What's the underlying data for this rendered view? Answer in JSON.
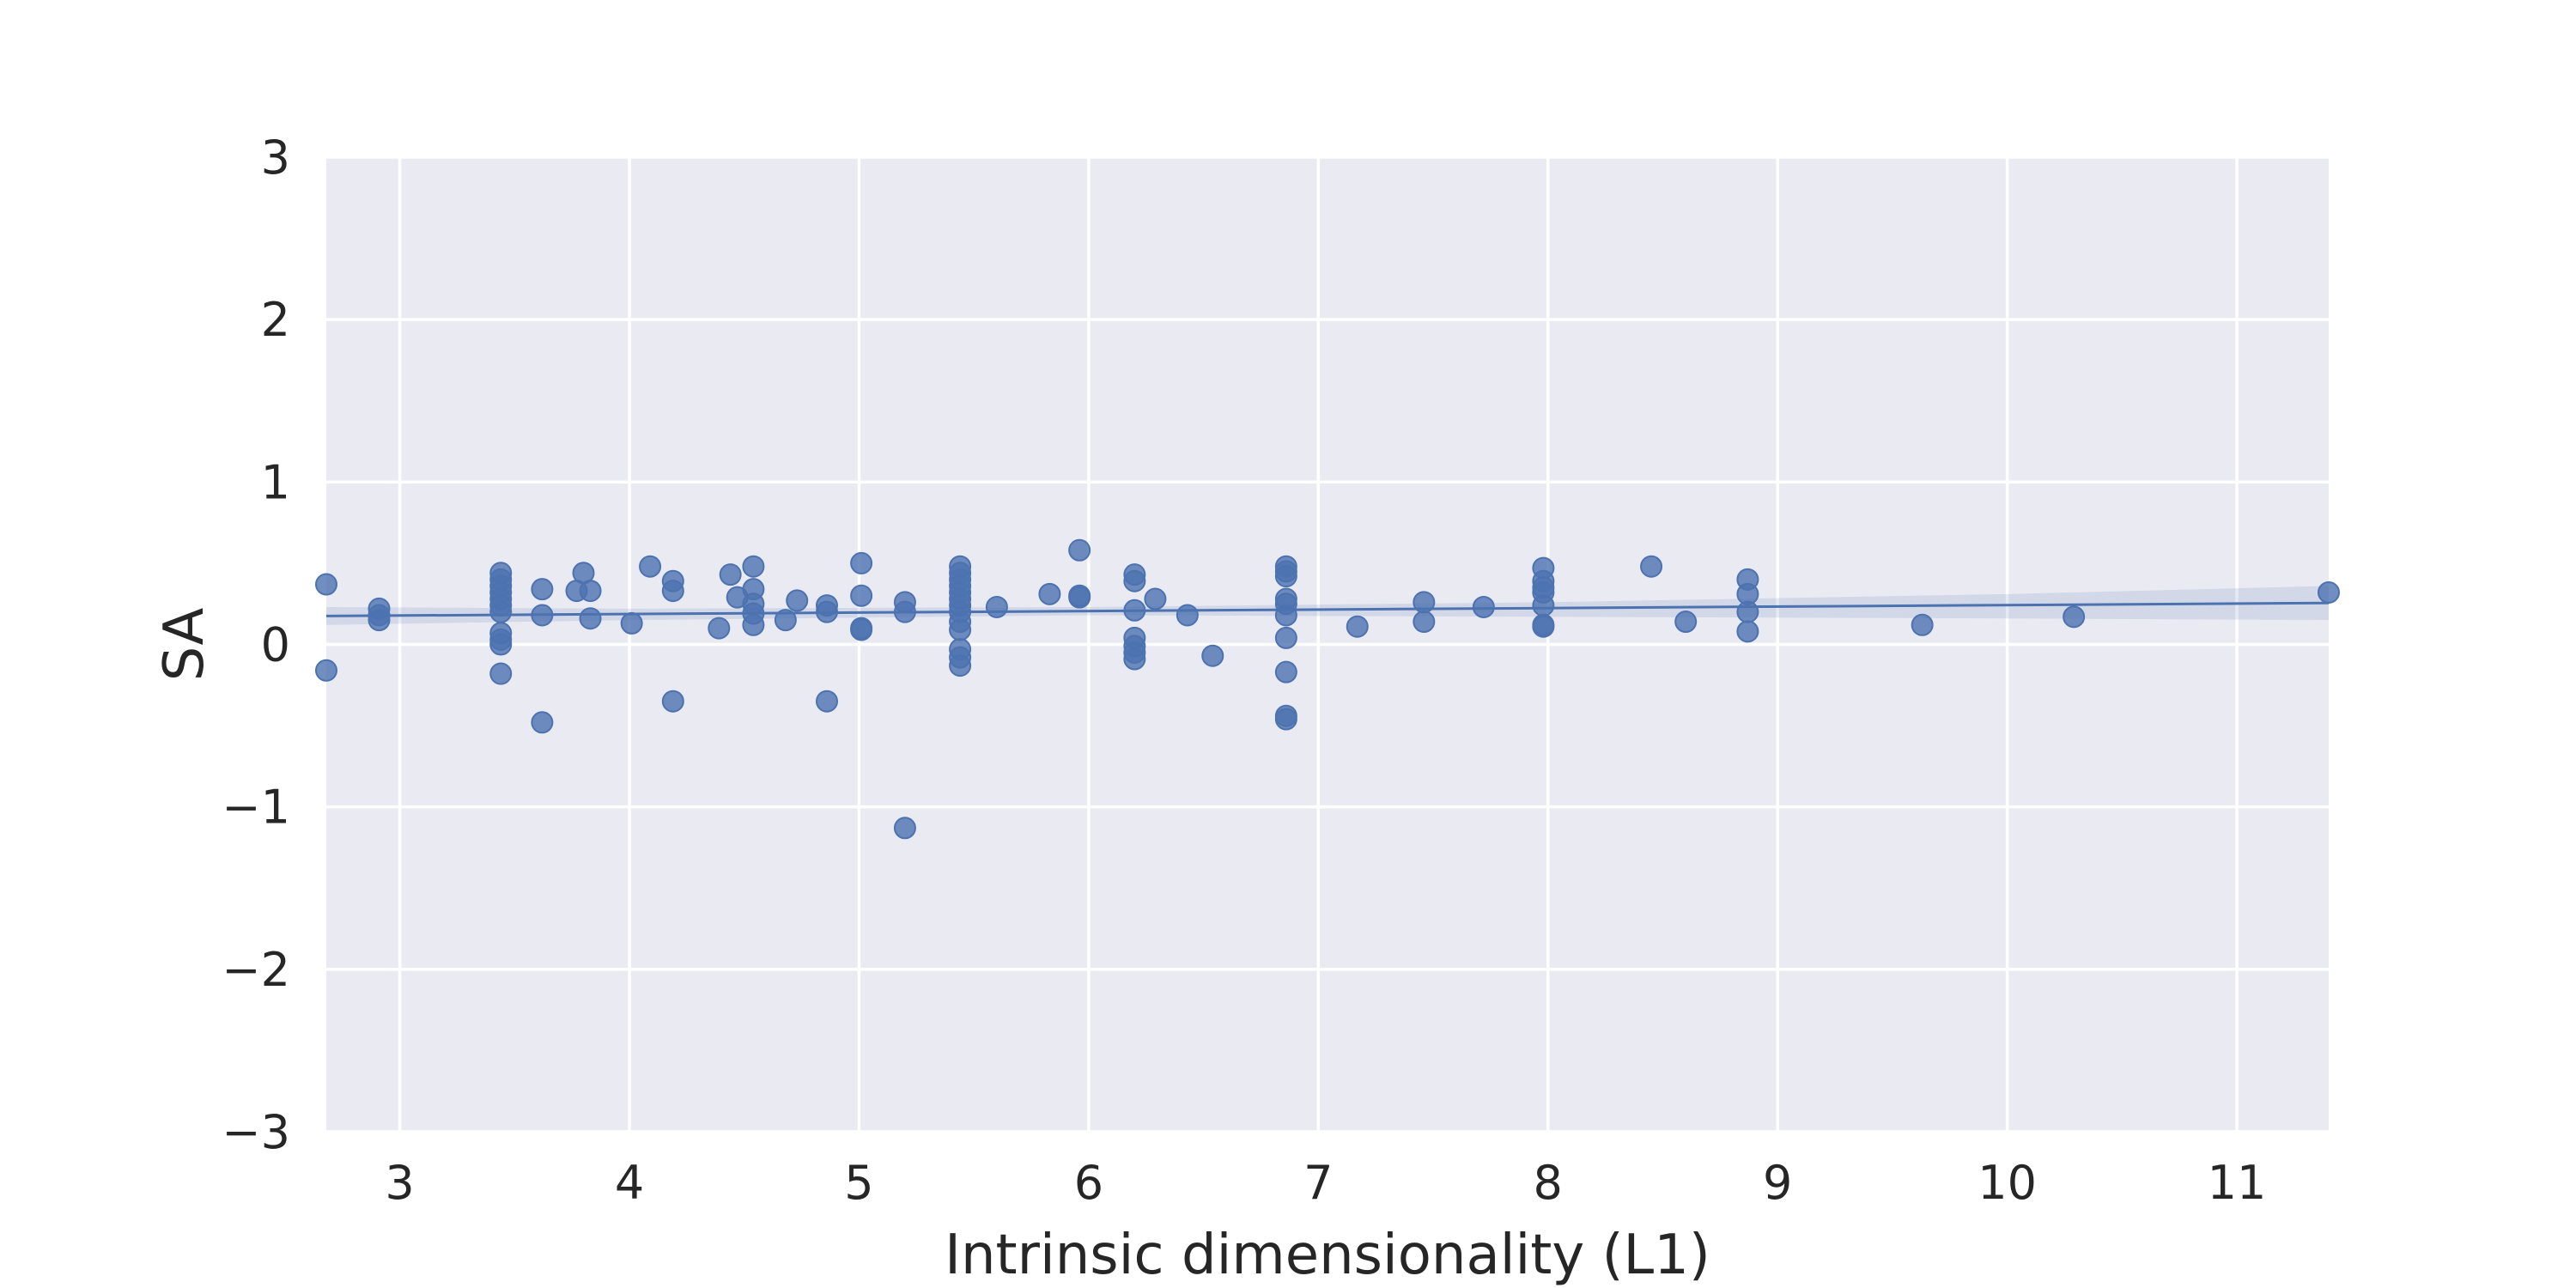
{
  "chart_data": {
    "type": "scatter",
    "title": "",
    "xlabel": "Intrinsic dimensionality (L1)",
    "ylabel": "SA",
    "xlim": [
      2.68,
      11.4
    ],
    "ylim": [
      -3,
      3
    ],
    "x_ticks": [
      3,
      4,
      5,
      6,
      7,
      8,
      9,
      10,
      11
    ],
    "y_ticks": [
      -3,
      -2,
      -1,
      0,
      1,
      2,
      3
    ],
    "x_tick_labels": [
      "3",
      "4",
      "5",
      "6",
      "7",
      "8",
      "9",
      "10",
      "11"
    ],
    "y_tick_labels": [
      "−3",
      "−2",
      "−1",
      "0",
      "1",
      "2",
      "3"
    ],
    "grid": true,
    "background_color": "#eaeaf2",
    "point_color": "#4c72b0",
    "points": [
      [
        2.68,
        0.37
      ],
      [
        2.68,
        -0.16
      ],
      [
        2.91,
        0.22
      ],
      [
        2.91,
        0.18
      ],
      [
        2.91,
        0.15
      ],
      [
        3.44,
        0.44
      ],
      [
        3.44,
        0.4
      ],
      [
        3.44,
        0.36
      ],
      [
        3.44,
        0.32
      ],
      [
        3.44,
        0.28
      ],
      [
        3.44,
        0.24
      ],
      [
        3.44,
        0.2
      ],
      [
        3.44,
        0.07
      ],
      [
        3.44,
        0.03
      ],
      [
        3.44,
        0.0
      ],
      [
        3.44,
        -0.18
      ],
      [
        3.62,
        0.34
      ],
      [
        3.62,
        0.18
      ],
      [
        3.62,
        -0.48
      ],
      [
        3.77,
        0.33
      ],
      [
        3.8,
        0.44
      ],
      [
        3.83,
        0.33
      ],
      [
        3.83,
        0.16
      ],
      [
        4.01,
        0.13
      ],
      [
        4.09,
        0.48
      ],
      [
        4.19,
        0.39
      ],
      [
        4.19,
        0.33
      ],
      [
        4.19,
        -0.35
      ],
      [
        4.39,
        0.1
      ],
      [
        4.44,
        0.43
      ],
      [
        4.47,
        0.29
      ],
      [
        4.54,
        0.48
      ],
      [
        4.54,
        0.34
      ],
      [
        4.54,
        0.25
      ],
      [
        4.54,
        0.19
      ],
      [
        4.54,
        0.12
      ],
      [
        4.68,
        0.15
      ],
      [
        4.73,
        0.27
      ],
      [
        4.86,
        0.24
      ],
      [
        4.86,
        0.2
      ],
      [
        4.86,
        -0.35
      ],
      [
        5.01,
        0.5
      ],
      [
        5.01,
        0.3
      ],
      [
        5.01,
        0.1
      ],
      [
        5.01,
        0.09
      ],
      [
        5.2,
        0.26
      ],
      [
        5.2,
        0.2
      ],
      [
        5.2,
        -1.13
      ],
      [
        5.44,
        0.48
      ],
      [
        5.44,
        0.44
      ],
      [
        5.44,
        0.4
      ],
      [
        5.44,
        0.36
      ],
      [
        5.44,
        0.32
      ],
      [
        5.44,
        0.28
      ],
      [
        5.44,
        0.24
      ],
      [
        5.44,
        0.2
      ],
      [
        5.44,
        0.14
      ],
      [
        5.44,
        0.09
      ],
      [
        5.44,
        -0.03
      ],
      [
        5.44,
        -0.08
      ],
      [
        5.44,
        -0.13
      ],
      [
        5.6,
        0.23
      ],
      [
        5.83,
        0.31
      ],
      [
        5.96,
        0.58
      ],
      [
        5.96,
        0.3
      ],
      [
        5.96,
        0.29
      ],
      [
        6.2,
        0.43
      ],
      [
        6.2,
        0.39
      ],
      [
        6.2,
        0.21
      ],
      [
        6.2,
        0.04
      ],
      [
        6.2,
        -0.01
      ],
      [
        6.2,
        -0.05
      ],
      [
        6.2,
        -0.09
      ],
      [
        6.29,
        0.28
      ],
      [
        6.43,
        0.18
      ],
      [
        6.54,
        -0.07
      ],
      [
        6.86,
        0.48
      ],
      [
        6.86,
        0.45
      ],
      [
        6.86,
        0.42
      ],
      [
        6.86,
        0.28
      ],
      [
        6.86,
        0.25
      ],
      [
        6.86,
        0.18
      ],
      [
        6.86,
        0.04
      ],
      [
        6.86,
        -0.17
      ],
      [
        6.86,
        -0.44
      ],
      [
        6.86,
        -0.46
      ],
      [
        7.17,
        0.11
      ],
      [
        7.46,
        0.26
      ],
      [
        7.46,
        0.14
      ],
      [
        7.72,
        0.23
      ],
      [
        7.98,
        0.47
      ],
      [
        7.98,
        0.39
      ],
      [
        7.98,
        0.35
      ],
      [
        7.98,
        0.32
      ],
      [
        7.98,
        0.24
      ],
      [
        7.98,
        0.12
      ],
      [
        7.98,
        0.11
      ],
      [
        8.45,
        0.48
      ],
      [
        8.6,
        0.14
      ],
      [
        8.87,
        0.4
      ],
      [
        8.87,
        0.31
      ],
      [
        8.87,
        0.2
      ],
      [
        8.87,
        0.08
      ],
      [
        9.63,
        0.12
      ],
      [
        10.29,
        0.17
      ],
      [
        11.4,
        0.32
      ]
    ],
    "regression": {
      "x": [
        2.68,
        11.4
      ],
      "y": [
        0.175,
        0.255
      ]
    },
    "confidence_band": {
      "x": [
        2.68,
        4.0,
        6.0,
        8.0,
        10.0,
        11.4
      ],
      "lower": [
        0.12,
        0.15,
        0.18,
        0.17,
        0.16,
        0.15
      ],
      "upper": [
        0.23,
        0.22,
        0.23,
        0.26,
        0.31,
        0.36
      ]
    }
  }
}
